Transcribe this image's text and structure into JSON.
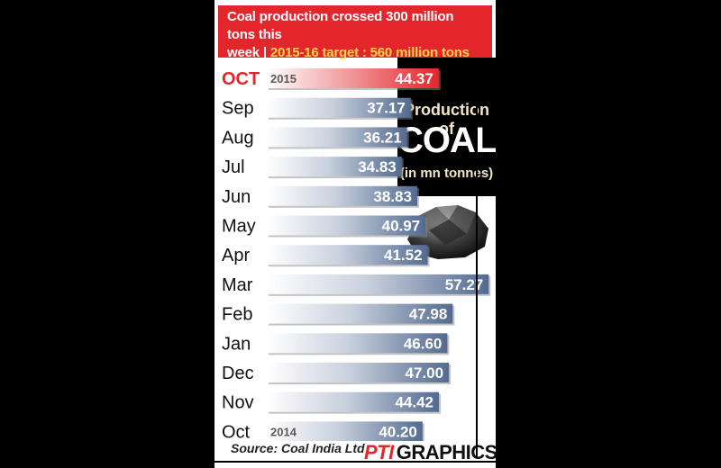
{
  "headline": {
    "line1": "Coal production crossed 300 million tons this",
    "line2_lead": "week | ",
    "line2_target": "2015-16 target : 560 million tons"
  },
  "info": {
    "line1": "Production of",
    "line2": "COAL",
    "line3": "(in mn tonnes)"
  },
  "footer": {
    "source": "Source: Coal India Ltd",
    "credit_brand": "PTI",
    "credit_text": "GRAPHICS"
  },
  "colors": {
    "highlight": "#e3262c",
    "bar": "#536a90",
    "text": "#111111"
  },
  "chart_data": {
    "type": "bar",
    "orientation": "horizontal",
    "title": "Production of COAL",
    "ylabel": "(in mn tonnes)",
    "categories": [
      "OCT",
      "Sep",
      "Aug",
      "Jul",
      "Jun",
      "May",
      "Apr",
      "Mar",
      "Feb",
      "Jan",
      "Dec",
      "Nov",
      "Oct"
    ],
    "values": [
      44.37,
      37.17,
      36.21,
      34.83,
      38.83,
      40.97,
      41.52,
      57.27,
      47.98,
      46.6,
      47.0,
      44.42,
      40.2
    ],
    "value_labels": [
      "44.37",
      "37.17",
      "36.21",
      "34.83",
      "38.83",
      "40.97",
      "41.52",
      "57.27",
      "47.98",
      "46.60",
      "47.00",
      "44.42",
      "40.20"
    ],
    "year_labels": [
      {
        "index": 0,
        "text": "2015"
      },
      {
        "index": 12,
        "text": "2014"
      }
    ],
    "highlight_index": 0,
    "grid": false
  }
}
